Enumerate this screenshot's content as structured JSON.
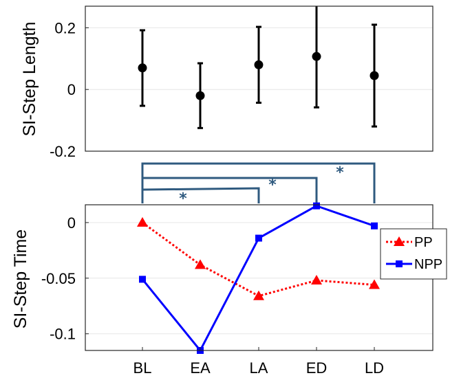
{
  "chart_data": [
    {
      "type": "errorbar",
      "title": "",
      "xlabel": "",
      "ylabel": "SI-Step Length",
      "categories": [
        "BL",
        "EA",
        "LA",
        "ED",
        "LD"
      ],
      "ylim": [
        -0.2,
        0.27
      ],
      "yticks": [
        "-0.2",
        "0",
        "0.2"
      ],
      "grid": true,
      "series": [
        {
          "values": [
            0.07,
            -0.02,
            0.08,
            0.107,
            0.045
          ],
          "lower": [
            -0.053,
            -0.125,
            -0.043,
            -0.058,
            -0.12
          ],
          "upper": [
            0.192,
            0.085,
            0.203,
            0.27,
            0.21
          ],
          "color": "#000000"
        }
      ]
    },
    {
      "type": "line",
      "title": "",
      "xlabel": "",
      "ylabel": "SI-Step Time",
      "categories": [
        "BL",
        "EA",
        "LA",
        "ED",
        "LD"
      ],
      "ylim": [
        -0.115,
        0.016
      ],
      "yticks": [
        "-0.1",
        "-0.05",
        "0"
      ],
      "grid": true,
      "legend_position": "right",
      "series": [
        {
          "name": "PP",
          "values": [
            0.0,
            -0.038,
            -0.066,
            -0.052,
            -0.056
          ],
          "color": "#ff0000",
          "line": "dotted",
          "marker": "triangle"
        },
        {
          "name": "NPP",
          "values": [
            -0.051,
            -0.115,
            -0.014,
            0.015,
            -0.003
          ],
          "color": "#0000ff",
          "line": "solid",
          "marker": "square"
        }
      ],
      "significance": [
        {
          "from": "BL",
          "to": "LA",
          "label": "*"
        },
        {
          "from": "BL",
          "to": "ED",
          "label": "*"
        },
        {
          "from": "BL",
          "to": "LD",
          "label": "*"
        }
      ],
      "bracket_color": "#2f5a7f"
    }
  ]
}
